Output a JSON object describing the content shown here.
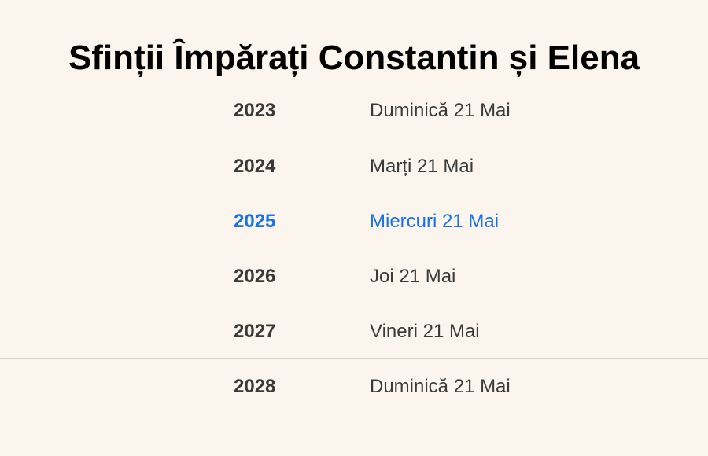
{
  "title": "Sfinții Împărați Constantin și Elena",
  "colors": {
    "background": "#fbf5ee",
    "text": "#3a3a3a",
    "highlight": "#1a73e8",
    "divider": "#d9d2c9"
  },
  "highlighted_year": "2025",
  "rows": [
    {
      "year": "2023",
      "date": "Duminică 21 Mai"
    },
    {
      "year": "2024",
      "date": "Marți 21 Mai"
    },
    {
      "year": "2025",
      "date": "Miercuri 21 Mai"
    },
    {
      "year": "2026",
      "date": "Joi 21 Mai"
    },
    {
      "year": "2027",
      "date": "Vineri 21 Mai"
    },
    {
      "year": "2028",
      "date": "Duminică 21 Mai"
    }
  ]
}
